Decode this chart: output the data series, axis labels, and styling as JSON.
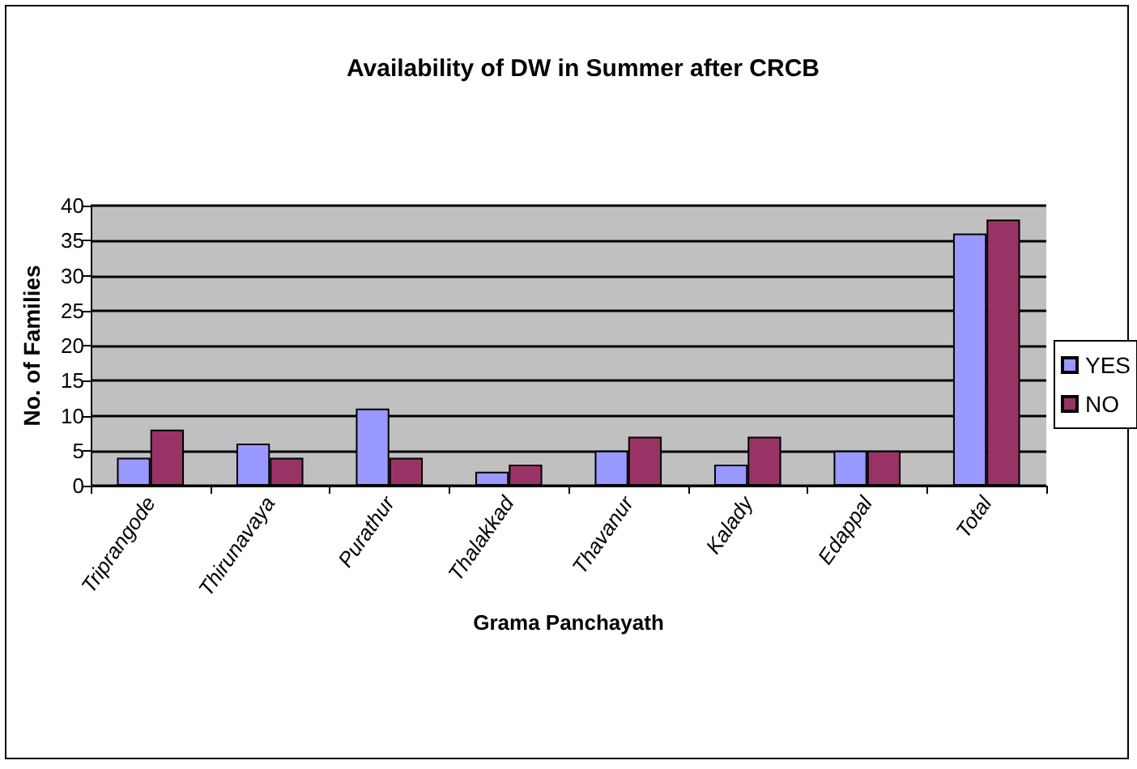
{
  "chart_data": {
    "type": "bar",
    "title": "Availability of DW in Summer after CRCB",
    "xlabel": "Grama Panchayath",
    "ylabel": "No. of Families",
    "categories": [
      "Triprangode",
      "Thirunavaya",
      "Purathur",
      "Thalakkad",
      "Thavanur",
      "Kalady",
      "Edappal",
      "Total"
    ],
    "series": [
      {
        "name": "YES",
        "color": "#9999ff",
        "values": [
          4,
          6,
          11,
          2,
          5,
          3,
          5,
          36
        ]
      },
      {
        "name": "NO",
        "color": "#993366",
        "values": [
          8,
          4,
          4,
          3,
          7,
          7,
          5,
          38
        ]
      }
    ],
    "ylim": [
      0,
      40
    ],
    "yticks": [
      0,
      5,
      10,
      15,
      20,
      25,
      30,
      35,
      40
    ],
    "grid": "y",
    "legend": "right"
  }
}
